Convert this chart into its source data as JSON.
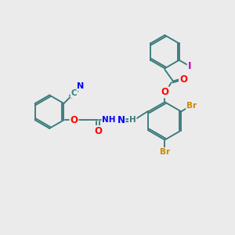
{
  "background_color": "#ebebeb",
  "bond_color": "#3a7a7a",
  "atom_colors": {
    "N": "#0000ff",
    "O": "#ff0000",
    "Br": "#cc8800",
    "I": "#cc00bb",
    "C": "#3a7a7a",
    "H": "#3a7a7a"
  },
  "figsize": [
    3.0,
    3.0
  ],
  "dpi": 100,
  "lw": 1.35,
  "r_ring": 0.68,
  "sep": 0.065
}
